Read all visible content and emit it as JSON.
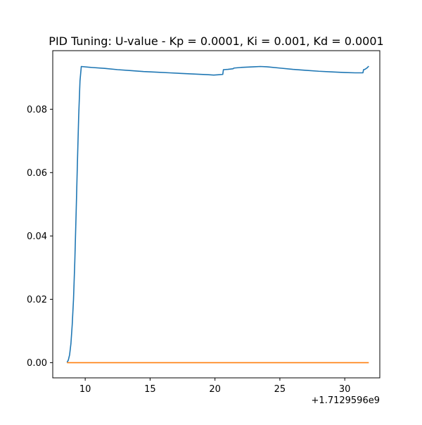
{
  "chart_data": {
    "type": "line",
    "title": "PID Tuning: U-value - Kp = 0.0001, Ki = 0.001, Kd = 0.0001",
    "xlabel": "",
    "ylabel": "",
    "x_offset_label": "+1.7129596e9",
    "xlim": [
      7.5,
      32.7
    ],
    "ylim": [
      -0.0048,
      0.0985
    ],
    "xticks": [
      10,
      15,
      20,
      25,
      30
    ],
    "xtick_labels": [
      "10",
      "15",
      "20",
      "25",
      "30"
    ],
    "yticks": [
      0.0,
      0.02,
      0.04,
      0.06,
      0.08
    ],
    "ytick_labels": [
      "0.00",
      "0.02",
      "0.04",
      "0.06",
      "0.08"
    ],
    "grid": false,
    "legend": false,
    "series": [
      {
        "color": "#1f77b4",
        "x": [
          8.6,
          8.7,
          8.8,
          8.9,
          9.0,
          9.1,
          9.2,
          9.3,
          9.4,
          9.5,
          9.6,
          9.7,
          10.5,
          11.5,
          12.5,
          13.5,
          14.5,
          15.5,
          16.5,
          17.5,
          18.5,
          19.5,
          19.9,
          20.3,
          20.6,
          20.65,
          21.0,
          21.4,
          21.45,
          22.0,
          23.0,
          23.5,
          24.0,
          25.0,
          26.0,
          27.0,
          28.0,
          29.0,
          30.0,
          30.8,
          31.0,
          31.4,
          31.45,
          31.55,
          31.7,
          31.85
        ],
        "values": [
          0.0001,
          0.0008,
          0.0025,
          0.006,
          0.012,
          0.02,
          0.032,
          0.047,
          0.063,
          0.078,
          0.089,
          0.0935,
          0.0932,
          0.0929,
          0.0925,
          0.0922,
          0.0919,
          0.0917,
          0.0915,
          0.0913,
          0.0911,
          0.0909,
          0.0908,
          0.0909,
          0.091,
          0.0925,
          0.0926,
          0.0928,
          0.093,
          0.0932,
          0.0934,
          0.0935,
          0.0934,
          0.093,
          0.0926,
          0.0923,
          0.092,
          0.0918,
          0.0916,
          0.0915,
          0.0915,
          0.0915,
          0.0925,
          0.0926,
          0.093,
          0.0936
        ]
      },
      {
        "color": "#ff7f0e",
        "x": [
          8.6,
          31.85
        ],
        "values": [
          0.0,
          0.0
        ]
      }
    ]
  }
}
